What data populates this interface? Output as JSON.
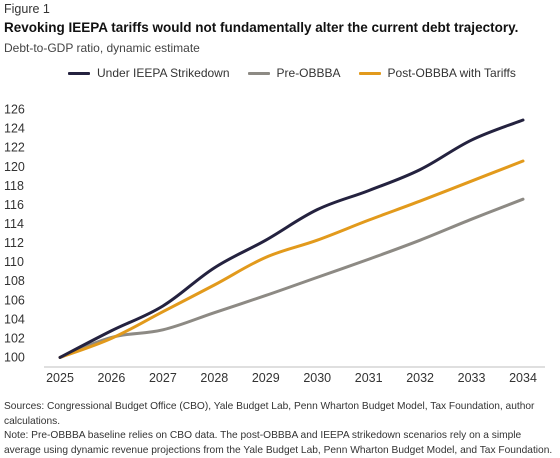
{
  "figure_label": "Figure 1",
  "title": "Revoking IEEPA tariffs would not fundamentally alter the current debt trajectory.",
  "subtitle": "Debt-to-GDP ratio, dynamic estimate",
  "colors": {
    "under_ieepa": "#24223f",
    "pre_obbba": "#8d8a84",
    "post_obbba": "#e29a1c",
    "axis": "#bfbfbf",
    "text": "#333333"
  },
  "chart_data": {
    "type": "line",
    "x": [
      2025,
      2026,
      2027,
      2028,
      2029,
      2030,
      2031,
      2032,
      2033,
      2034
    ],
    "ylim": [
      99,
      127
    ],
    "yticks": [
      100,
      102,
      104,
      106,
      108,
      110,
      112,
      114,
      116,
      118,
      120,
      122,
      124,
      126
    ],
    "xlabel": "",
    "ylabel": "",
    "grid": false,
    "legend_position": "top",
    "series": [
      {
        "name": "Under IEEPA Strikedown",
        "color_key": "under_ieepa",
        "values": [
          100.0,
          102.8,
          105.4,
          109.4,
          112.3,
          115.5,
          117.5,
          119.7,
          122.8,
          124.9
        ]
      },
      {
        "name": "Pre-OBBBA",
        "color_key": "pre_obbba",
        "values": [
          100.0,
          102.1,
          102.9,
          104.7,
          106.5,
          108.4,
          110.3,
          112.3,
          114.5,
          116.6
        ]
      },
      {
        "name": "Post-OBBBA with Tariffs",
        "color_key": "post_obbba",
        "values": [
          100.0,
          102.0,
          104.8,
          107.6,
          110.5,
          112.3,
          114.4,
          116.4,
          118.5,
          120.6
        ]
      }
    ]
  },
  "notes": {
    "sources": "Sources: Congressional Budget Office (CBO), Yale Budget Lab, Penn Wharton Budget Model, Tax Foundation, author calculations.",
    "note": "Note: Pre-OBBBA baseline relies on CBO data. The post-OBBBA and IEEPA strikedown scenarios rely on a simple average using dynamic revenue projections from the Yale Budget Lab, Penn Wharton Budget Model, and Tax Foundation."
  }
}
